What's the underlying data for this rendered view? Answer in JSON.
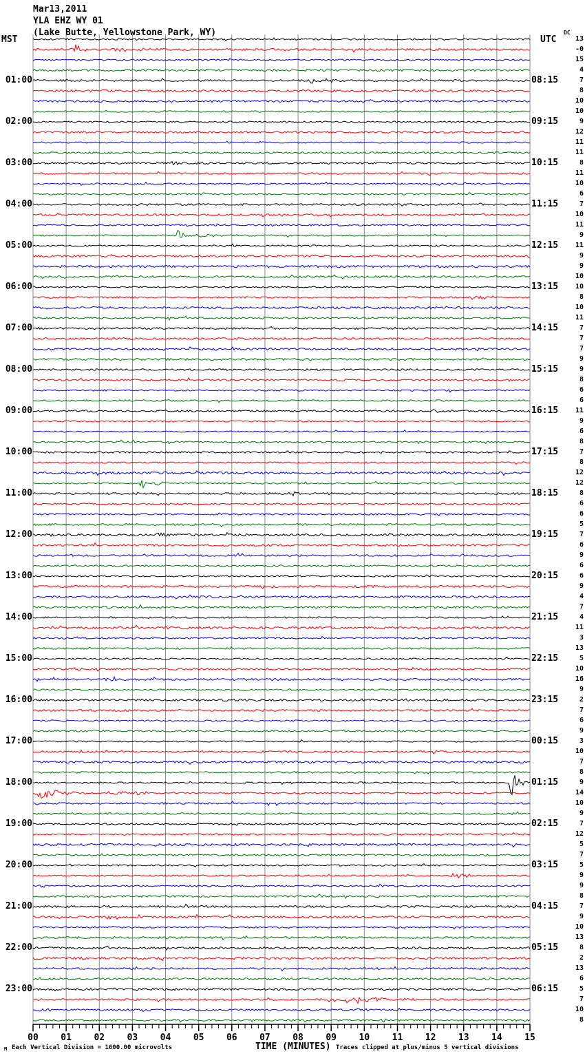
{
  "header": {
    "date": "Mar13,2011",
    "station": "YLA EHZ WY 01",
    "location": "(Lake Butte, Yellowstone Park, WY)"
  },
  "left_axis": {
    "title": "MST"
  },
  "right_axis": {
    "title": "UTC",
    "dc_label": "DC"
  },
  "footer": {
    "watermark": "M",
    "scale_note": "Each Vertical Division = 1600.00 microvolts",
    "xlabel": "TIME (MINUTES)",
    "clip_note": "Traces clipped at plus/minus 5 vertical divisions"
  },
  "x_axis": {
    "tick_labels": [
      "00",
      "01",
      "02",
      "03",
      "04",
      "05",
      "06",
      "07",
      "08",
      "09",
      "10",
      "11",
      "12",
      "13",
      "14",
      "15"
    ]
  },
  "colors": {
    "trace_cycle": [
      "#000000",
      "#ee0000",
      "#0000dd",
      "#007700"
    ],
    "grid": "#888888",
    "background": "#ffffff"
  },
  "chart_data": {
    "type": "line",
    "title": "Helicorder seismogram YLA EHZ WY 01 (Lake Butte, Yellowstone Park, WY) Mar13,2011",
    "xlabel": "TIME (MINUTES)",
    "x_range": [
      0,
      15
    ],
    "minutes_per_row": 15,
    "rows_per_hour": 4,
    "left_time_zone": "MST",
    "right_time_zone": "UTC",
    "vertical_division_microvolts": 1600.0,
    "clip_divisions": 5,
    "rows": [
      {
        "m": "",
        "u": "",
        "d": "13"
      },
      {
        "m": "",
        "u": "",
        "d": "-0"
      },
      {
        "m": "",
        "u": "",
        "d": "15"
      },
      {
        "m": "",
        "u": "",
        "d": "4"
      },
      {
        "m": "01:00",
        "u": "08:15",
        "d": "7"
      },
      {
        "m": "",
        "u": "",
        "d": "8"
      },
      {
        "m": "",
        "u": "",
        "d": "10"
      },
      {
        "m": "",
        "u": "",
        "d": "10"
      },
      {
        "m": "02:00",
        "u": "09:15",
        "d": "9"
      },
      {
        "m": "",
        "u": "",
        "d": "12"
      },
      {
        "m": "",
        "u": "",
        "d": "11"
      },
      {
        "m": "",
        "u": "",
        "d": "11"
      },
      {
        "m": "03:00",
        "u": "10:15",
        "d": "8"
      },
      {
        "m": "",
        "u": "",
        "d": "11"
      },
      {
        "m": "",
        "u": "",
        "d": "10"
      },
      {
        "m": "",
        "u": "",
        "d": "6"
      },
      {
        "m": "04:00",
        "u": "11:15",
        "d": "7"
      },
      {
        "m": "",
        "u": "",
        "d": "10"
      },
      {
        "m": "",
        "u": "",
        "d": "11"
      },
      {
        "m": "",
        "u": "",
        "d": "9"
      },
      {
        "m": "05:00",
        "u": "12:15",
        "d": "11"
      },
      {
        "m": "",
        "u": "",
        "d": "9"
      },
      {
        "m": "",
        "u": "",
        "d": "9"
      },
      {
        "m": "",
        "u": "",
        "d": "10"
      },
      {
        "m": "06:00",
        "u": "13:15",
        "d": "10"
      },
      {
        "m": "",
        "u": "",
        "d": "8"
      },
      {
        "m": "",
        "u": "",
        "d": "10"
      },
      {
        "m": "",
        "u": "",
        "d": "11"
      },
      {
        "m": "07:00",
        "u": "14:15",
        "d": "7"
      },
      {
        "m": "",
        "u": "",
        "d": "7"
      },
      {
        "m": "",
        "u": "",
        "d": "7"
      },
      {
        "m": "",
        "u": "",
        "d": "9"
      },
      {
        "m": "08:00",
        "u": "15:15",
        "d": "9"
      },
      {
        "m": "",
        "u": "",
        "d": "8"
      },
      {
        "m": "",
        "u": "",
        "d": "6"
      },
      {
        "m": "",
        "u": "",
        "d": "6"
      },
      {
        "m": "09:00",
        "u": "16:15",
        "d": "11"
      },
      {
        "m": "",
        "u": "",
        "d": "9"
      },
      {
        "m": "",
        "u": "",
        "d": "6"
      },
      {
        "m": "",
        "u": "",
        "d": "8"
      },
      {
        "m": "10:00",
        "u": "17:15",
        "d": "7"
      },
      {
        "m": "",
        "u": "",
        "d": "8"
      },
      {
        "m": "",
        "u": "",
        "d": "12"
      },
      {
        "m": "",
        "u": "",
        "d": "12"
      },
      {
        "m": "11:00",
        "u": "18:15",
        "d": "8"
      },
      {
        "m": "",
        "u": "",
        "d": "6"
      },
      {
        "m": "",
        "u": "",
        "d": "6"
      },
      {
        "m": "",
        "u": "",
        "d": "5"
      },
      {
        "m": "12:00",
        "u": "19:15",
        "d": "7"
      },
      {
        "m": "",
        "u": "",
        "d": "6"
      },
      {
        "m": "",
        "u": "",
        "d": "9"
      },
      {
        "m": "",
        "u": "",
        "d": "6"
      },
      {
        "m": "13:00",
        "u": "20:15",
        "d": "6"
      },
      {
        "m": "",
        "u": "",
        "d": "9"
      },
      {
        "m": "",
        "u": "",
        "d": "4"
      },
      {
        "m": "",
        "u": "",
        "d": "7"
      },
      {
        "m": "14:00",
        "u": "21:15",
        "d": "4"
      },
      {
        "m": "",
        "u": "",
        "d": "11"
      },
      {
        "m": "",
        "u": "",
        "d": "3"
      },
      {
        "m": "",
        "u": "",
        "d": "13"
      },
      {
        "m": "15:00",
        "u": "22:15",
        "d": "5"
      },
      {
        "m": "",
        "u": "",
        "d": "10"
      },
      {
        "m": "",
        "u": "",
        "d": "16"
      },
      {
        "m": "",
        "u": "",
        "d": "9"
      },
      {
        "m": "16:00",
        "u": "23:15",
        "d": "2"
      },
      {
        "m": "",
        "u": "",
        "d": "7"
      },
      {
        "m": "",
        "u": "",
        "d": "6"
      },
      {
        "m": "",
        "u": "",
        "d": "9"
      },
      {
        "m": "17:00",
        "u": "00:15",
        "d": "3"
      },
      {
        "m": "",
        "u": "",
        "d": "10"
      },
      {
        "m": "",
        "u": "",
        "d": "7"
      },
      {
        "m": "",
        "u": "",
        "d": "8"
      },
      {
        "m": "18:00",
        "u": "01:15",
        "d": "9"
      },
      {
        "m": "",
        "u": "",
        "d": "14"
      },
      {
        "m": "",
        "u": "",
        "d": "10"
      },
      {
        "m": "",
        "u": "",
        "d": "9"
      },
      {
        "m": "19:00",
        "u": "02:15",
        "d": "7"
      },
      {
        "m": "",
        "u": "",
        "d": "12"
      },
      {
        "m": "",
        "u": "",
        "d": "5"
      },
      {
        "m": "",
        "u": "",
        "d": "7"
      },
      {
        "m": "20:00",
        "u": "03:15",
        "d": "5"
      },
      {
        "m": "",
        "u": "",
        "d": "9"
      },
      {
        "m": "",
        "u": "",
        "d": "9"
      },
      {
        "m": "",
        "u": "",
        "d": "8"
      },
      {
        "m": "21:00",
        "u": "04:15",
        "d": "7"
      },
      {
        "m": "",
        "u": "",
        "d": "9"
      },
      {
        "m": "",
        "u": "",
        "d": "10"
      },
      {
        "m": "",
        "u": "",
        "d": "13"
      },
      {
        "m": "22:00",
        "u": "05:15",
        "d": "8"
      },
      {
        "m": "",
        "u": "",
        "d": "2"
      },
      {
        "m": "",
        "u": "",
        "d": "13"
      },
      {
        "m": "",
        "u": "",
        "d": "6"
      },
      {
        "m": "23:00",
        "u": "06:15",
        "d": "5"
      },
      {
        "m": "",
        "u": "",
        "d": "7"
      },
      {
        "m": "",
        "u": "",
        "d": "10"
      },
      {
        "m": "",
        "u": "",
        "d": "8"
      }
    ],
    "events": [
      {
        "row": 2,
        "s": 1.15,
        "d": 0.9,
        "a": 8
      },
      {
        "row": 2,
        "s": 2.0,
        "d": 3.5,
        "a": 2.5
      },
      {
        "row": 5,
        "s": 8.2,
        "d": 2.3,
        "a": 4.5
      },
      {
        "row": 7,
        "s": 9.9,
        "d": 0.9,
        "a": 2.2
      },
      {
        "row": 11,
        "s": 6.8,
        "d": 0.7,
        "a": 2
      },
      {
        "row": 13,
        "s": 4.0,
        "d": 1.8,
        "a": 2.8
      },
      {
        "row": 17,
        "s": 12.7,
        "d": 0.6,
        "a": 2
      },
      {
        "row": 20,
        "s": 4.3,
        "d": 0.5,
        "a": 10
      },
      {
        "row": 20,
        "s": 4.8,
        "d": 2.4,
        "a": 3
      },
      {
        "row": 26,
        "s": 13.3,
        "d": 1.3,
        "a": 3
      },
      {
        "row": 32,
        "s": 7.9,
        "d": 0.6,
        "a": 2
      },
      {
        "row": 32,
        "s": 14.6,
        "d": 0.4,
        "a": 3
      },
      {
        "row": 37,
        "s": 12.0,
        "d": 1.0,
        "a": 2.5
      },
      {
        "row": 41,
        "s": 13.3,
        "d": 0.5,
        "a": 2
      },
      {
        "row": 43,
        "s": 12.6,
        "d": 0.4,
        "a": 2
      },
      {
        "row": 44,
        "s": 3.2,
        "d": 0.35,
        "a": 14
      },
      {
        "row": 44,
        "s": 3.55,
        "d": 1.6,
        "a": 2.2
      },
      {
        "row": 45,
        "s": 7.3,
        "d": 1.9,
        "a": 5
      },
      {
        "row": 49,
        "s": 3.6,
        "d": 1.9,
        "a": 2.3
      },
      {
        "row": 53,
        "s": 11.8,
        "d": 0.7,
        "a": 2.3
      },
      {
        "row": 62,
        "s": 1.15,
        "d": 0.7,
        "a": 2.5
      },
      {
        "row": 63,
        "s": 2.1,
        "d": 0.8,
        "a": 2
      },
      {
        "row": 68,
        "s": 12.2,
        "d": 0.4,
        "a": 2
      },
      {
        "row": 73,
        "s": 14.35,
        "d": 0.65,
        "a": 22
      },
      {
        "row": 74,
        "s": 0.0,
        "d": 1.8,
        "a": 9
      },
      {
        "row": 74,
        "s": 1.8,
        "d": 6.0,
        "a": 2.8
      },
      {
        "row": 76,
        "s": 14.25,
        "d": 0.35,
        "a": 3
      },
      {
        "row": 82,
        "s": 12.55,
        "d": 1.4,
        "a": 4
      },
      {
        "row": 83,
        "s": 0.15,
        "d": 0.6,
        "a": 2.5
      },
      {
        "row": 84,
        "s": 10.3,
        "d": 0.4,
        "a": 2.5
      },
      {
        "row": 90,
        "s": 9.6,
        "d": 0.5,
        "a": 1.8
      },
      {
        "row": 94,
        "s": 9.2,
        "d": 3.0,
        "a": 6
      },
      {
        "row": 95,
        "s": 0.1,
        "d": 0.9,
        "a": 3
      },
      {
        "row": 95,
        "s": 9.7,
        "d": 1.3,
        "a": 2
      },
      {
        "row": 96,
        "s": 10.5,
        "d": 0.35,
        "a": 3
      }
    ]
  }
}
